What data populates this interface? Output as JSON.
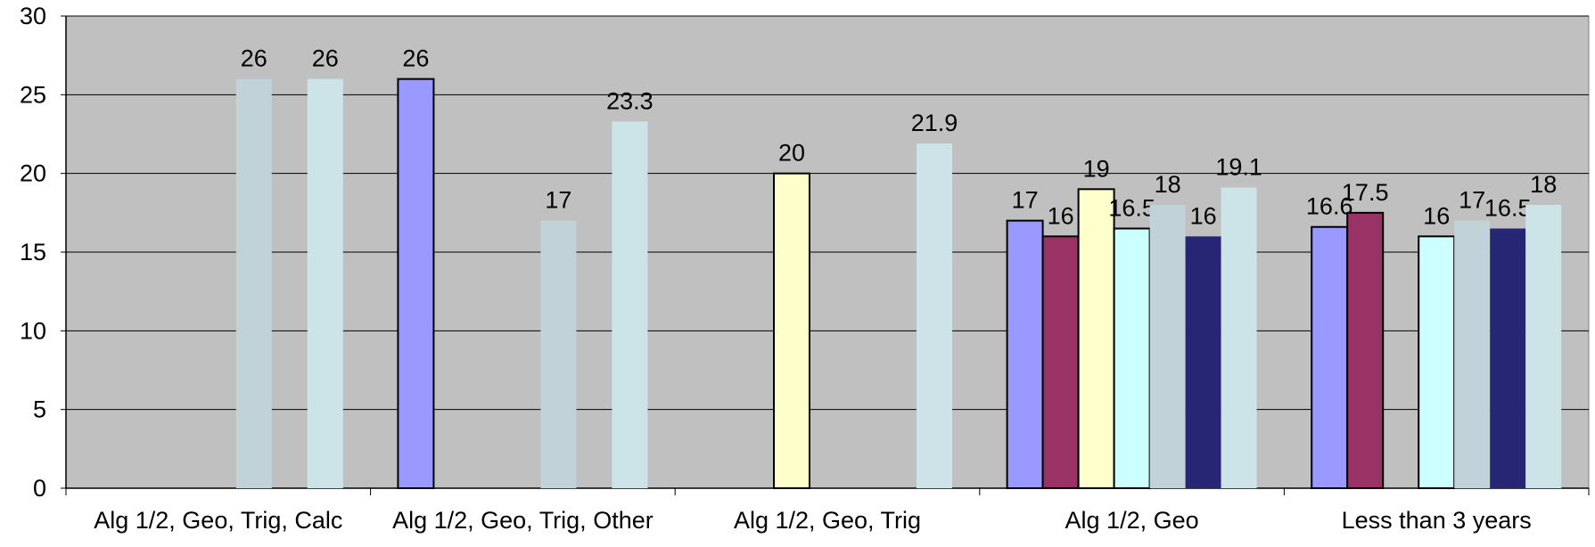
{
  "chart_data": {
    "type": "bar",
    "categories": [
      "Alg 1/2, Geo, Trig, Calc",
      "Alg 1/2, Geo, Trig, Other",
      "Alg 1/2, Geo, Trig",
      "Alg 1/2, Geo",
      "Less than 3 years"
    ],
    "ylim": [
      0,
      30
    ],
    "yticks": [
      0,
      5,
      10,
      15,
      20,
      25,
      30
    ],
    "grid": true,
    "plot_background": "#c0c0c0",
    "series": [
      {
        "color": "#9999ff",
        "outlined": true,
        "values": [
          null,
          26,
          null,
          17,
          16.6
        ]
      },
      {
        "color": "#993366",
        "outlined": true,
        "values": [
          null,
          null,
          null,
          16,
          17.5
        ]
      },
      {
        "color": "#ffffcc",
        "outlined": true,
        "values": [
          null,
          null,
          20,
          19,
          null
        ]
      },
      {
        "color": "#ccffff",
        "outlined": true,
        "values": [
          null,
          null,
          null,
          16.5,
          16
        ]
      },
      {
        "color": "#c1d3d8",
        "outlined": false,
        "values": [
          26,
          17,
          null,
          18,
          17
        ]
      },
      {
        "color": "#262675",
        "outlined": false,
        "values": [
          null,
          null,
          null,
          16,
          16.5
        ]
      },
      {
        "color": "#cce4e8",
        "outlined": false,
        "values": [
          26,
          23.3,
          21.9,
          19.1,
          18
        ]
      }
    ]
  }
}
